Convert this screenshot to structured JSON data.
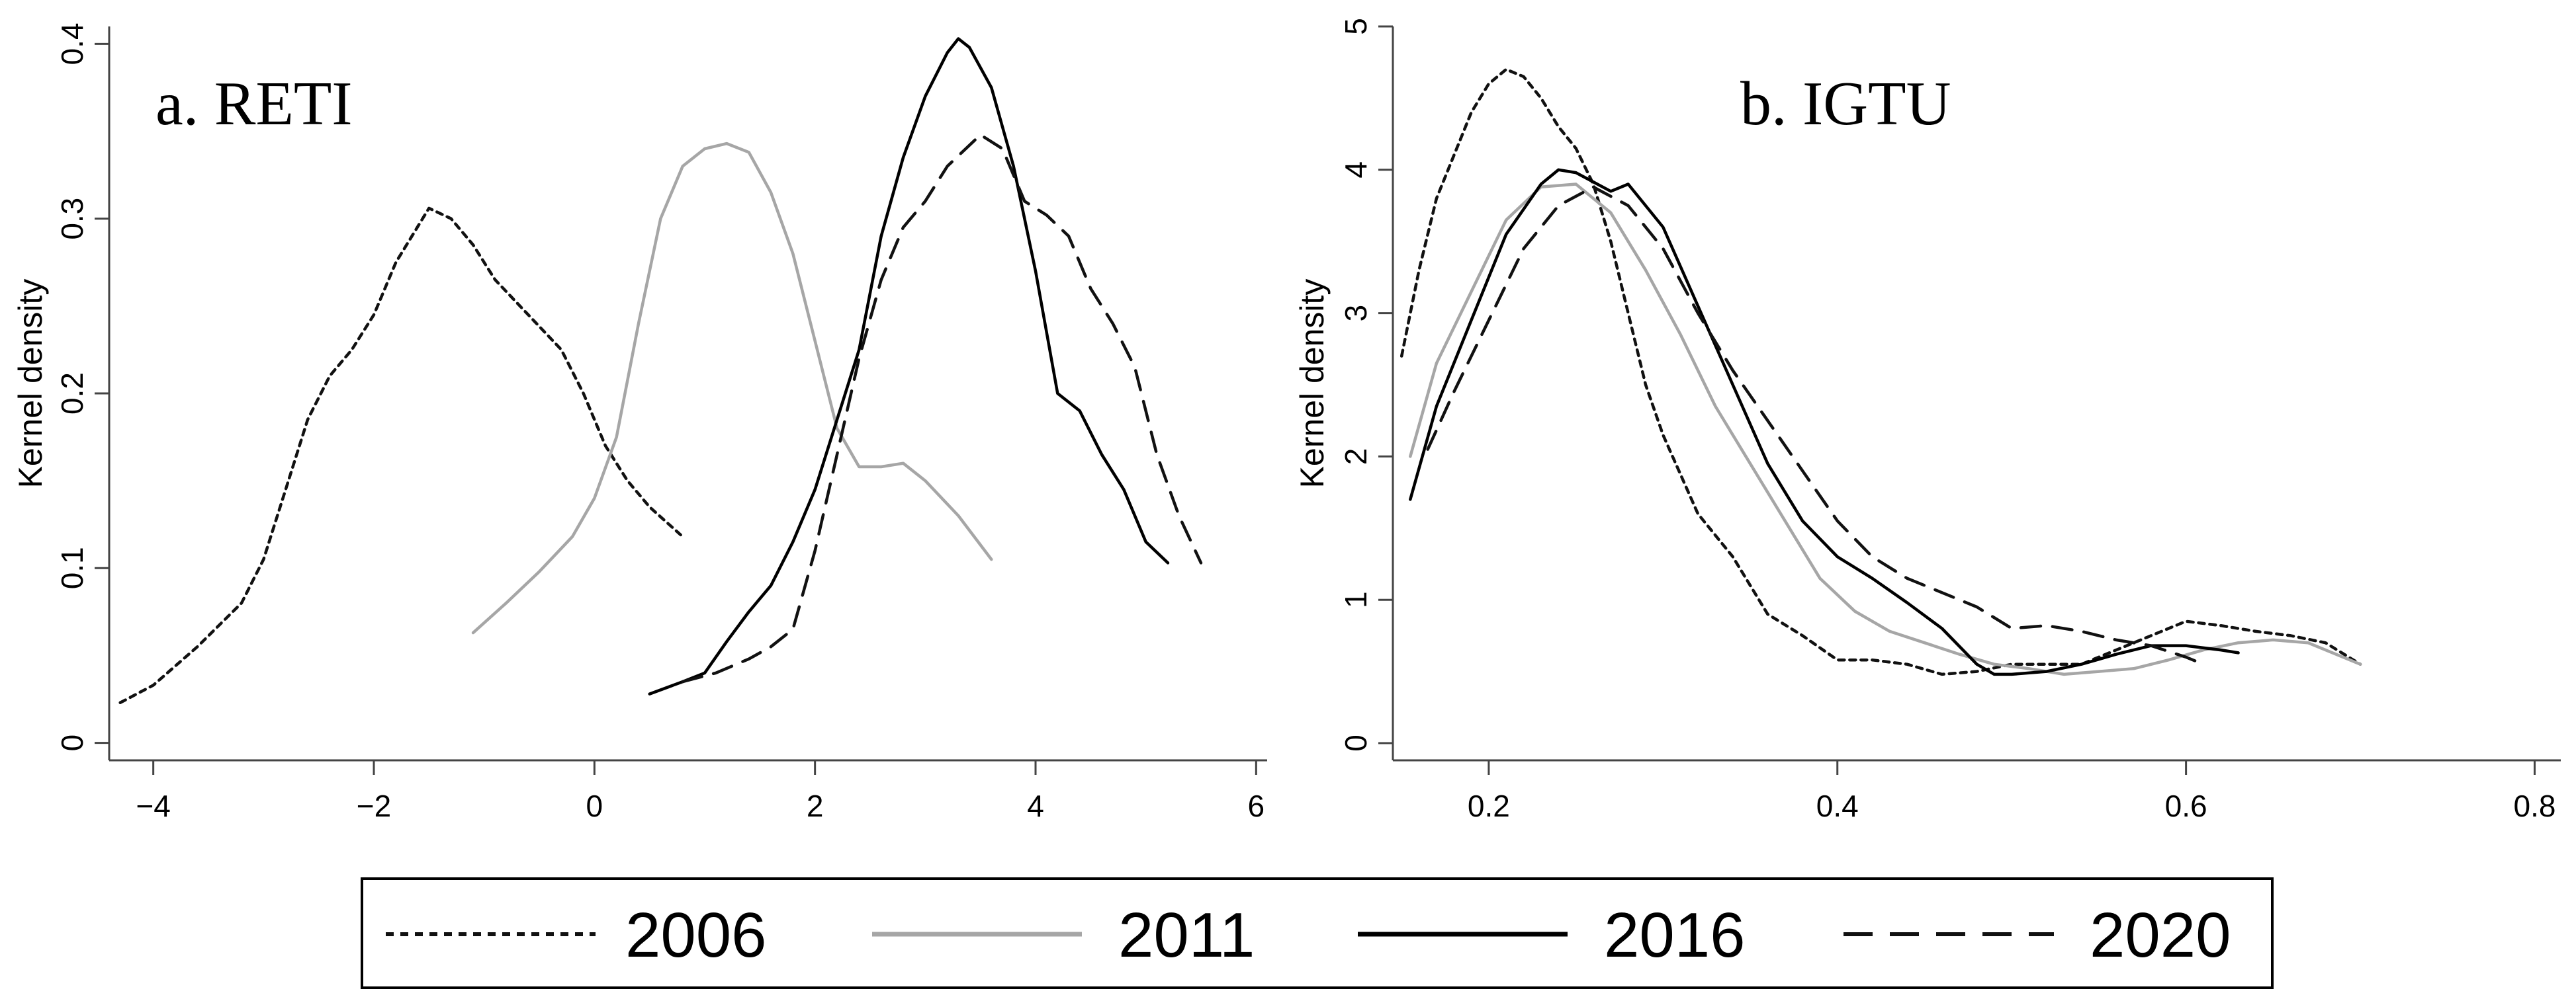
{
  "legend": {
    "entries": [
      "2006",
      "2011",
      "2016",
      "2020"
    ]
  },
  "colors": {
    "s2006": "#111111",
    "s2011": "#a6a6a6",
    "s2016": "#000000",
    "s2020": "#111111",
    "axis": "#444444"
  },
  "chart_data": [
    {
      "type": "line",
      "title": "a. RETI",
      "xlabel": "",
      "ylabel": "Kernel density",
      "xlim": [
        -4.4,
        6.1
      ],
      "ylim": [
        -0.01,
        0.41
      ],
      "xticks": [
        -4,
        -2,
        0,
        2,
        4,
        6
      ],
      "xtick_labels": [
        "−4",
        "−2",
        "0",
        "2",
        "4",
        "6"
      ],
      "yticks": [
        0,
        0.1,
        0.2,
        0.3,
        0.4
      ],
      "ytick_labels": [
        "0",
        "0.1",
        "0.2",
        "0.3",
        "0.4"
      ],
      "grid": false,
      "series": [
        {
          "name": "2006",
          "style": "dotted",
          "x": [
            -4.3,
            -4.0,
            -3.6,
            -3.2,
            -3.0,
            -2.8,
            -2.6,
            -2.4,
            -2.2,
            -2.0,
            -1.8,
            -1.5,
            -1.3,
            -1.1,
            -0.9,
            -0.6,
            -0.3,
            -0.1,
            0.1,
            0.3,
            0.5,
            0.8
          ],
          "y": [
            0.023,
            0.033,
            0.055,
            0.08,
            0.105,
            0.145,
            0.185,
            0.21,
            0.225,
            0.245,
            0.275,
            0.306,
            0.3,
            0.285,
            0.265,
            0.245,
            0.225,
            0.2,
            0.17,
            0.15,
            0.135,
            0.118
          ]
        },
        {
          "name": "2011",
          "style": "solid",
          "x": [
            -1.1,
            -0.8,
            -0.5,
            -0.2,
            0.0,
            0.2,
            0.4,
            0.6,
            0.8,
            1.0,
            1.2,
            1.4,
            1.6,
            1.8,
            2.0,
            2.2,
            2.4,
            2.6,
            2.8,
            3.0,
            3.3,
            3.6
          ],
          "y": [
            0.063,
            0.08,
            0.098,
            0.118,
            0.14,
            0.175,
            0.24,
            0.3,
            0.33,
            0.34,
            0.343,
            0.338,
            0.315,
            0.28,
            0.23,
            0.18,
            0.158,
            0.158,
            0.16,
            0.15,
            0.13,
            0.105
          ]
        },
        {
          "name": "2016",
          "style": "solid",
          "x": [
            0.5,
            0.8,
            1.0,
            1.2,
            1.4,
            1.6,
            1.8,
            2.0,
            2.2,
            2.4,
            2.6,
            2.8,
            3.0,
            3.2,
            3.3,
            3.4,
            3.6,
            3.8,
            4.0,
            4.2,
            4.4,
            4.6,
            4.8,
            5.0,
            5.2
          ],
          "y": [
            0.028,
            0.035,
            0.04,
            0.058,
            0.075,
            0.09,
            0.115,
            0.145,
            0.185,
            0.225,
            0.29,
            0.335,
            0.37,
            0.395,
            0.403,
            0.398,
            0.375,
            0.33,
            0.27,
            0.2,
            0.19,
            0.165,
            0.145,
            0.115,
            0.103
          ]
        },
        {
          "name": "2020",
          "style": "dashed",
          "x": [
            0.8,
            1.1,
            1.4,
            1.6,
            1.8,
            2.0,
            2.2,
            2.4,
            2.6,
            2.8,
            3.0,
            3.2,
            3.5,
            3.7,
            3.9,
            4.1,
            4.3,
            4.5,
            4.7,
            4.9,
            5.1,
            5.3,
            5.5
          ],
          "y": [
            0.035,
            0.04,
            0.048,
            0.055,
            0.065,
            0.11,
            0.165,
            0.22,
            0.265,
            0.295,
            0.31,
            0.33,
            0.348,
            0.34,
            0.31,
            0.302,
            0.29,
            0.26,
            0.24,
            0.215,
            0.165,
            0.13,
            0.103
          ]
        }
      ]
    },
    {
      "type": "line",
      "title": "b. IGTU",
      "xlabel": "",
      "ylabel": "Kernel density",
      "xlim": [
        0.145,
        0.815
      ],
      "ylim": [
        -0.12,
        5.0
      ],
      "xticks": [
        0.2,
        0.4,
        0.6,
        0.8
      ],
      "xtick_labels": [
        "0.2",
        "0.4",
        "0.6",
        "0.8"
      ],
      "yticks": [
        0,
        1,
        2,
        3,
        4,
        5
      ],
      "ytick_labels": [
        "0",
        "1",
        "2",
        "3",
        "4",
        "5"
      ],
      "grid": false,
      "series": [
        {
          "name": "2006",
          "style": "dotted",
          "x": [
            0.15,
            0.16,
            0.17,
            0.18,
            0.19,
            0.2,
            0.21,
            0.22,
            0.23,
            0.24,
            0.25,
            0.26,
            0.27,
            0.28,
            0.29,
            0.3,
            0.32,
            0.34,
            0.36,
            0.38,
            0.4,
            0.42,
            0.44,
            0.46,
            0.48,
            0.5,
            0.52,
            0.54,
            0.56,
            0.58,
            0.6,
            0.62,
            0.64,
            0.66,
            0.68,
            0.7
          ],
          "y": [
            2.7,
            3.3,
            3.8,
            4.1,
            4.4,
            4.6,
            4.7,
            4.65,
            4.5,
            4.3,
            4.15,
            3.9,
            3.5,
            3.0,
            2.5,
            2.15,
            1.6,
            1.3,
            0.9,
            0.75,
            0.58,
            0.58,
            0.55,
            0.48,
            0.5,
            0.55,
            0.55,
            0.55,
            0.65,
            0.75,
            0.85,
            0.82,
            0.78,
            0.75,
            0.7,
            0.55
          ]
        },
        {
          "name": "2011",
          "style": "solid",
          "x": [
            0.155,
            0.17,
            0.19,
            0.21,
            0.23,
            0.25,
            0.27,
            0.29,
            0.31,
            0.33,
            0.35,
            0.37,
            0.39,
            0.41,
            0.43,
            0.45,
            0.47,
            0.49,
            0.51,
            0.53,
            0.55,
            0.57,
            0.59,
            0.61,
            0.63,
            0.65,
            0.67,
            0.7
          ],
          "y": [
            2.0,
            2.65,
            3.15,
            3.65,
            3.88,
            3.9,
            3.7,
            3.3,
            2.85,
            2.35,
            1.95,
            1.55,
            1.15,
            0.92,
            0.78,
            0.7,
            0.62,
            0.55,
            0.52,
            0.48,
            0.5,
            0.52,
            0.58,
            0.65,
            0.7,
            0.72,
            0.7,
            0.55
          ]
        },
        {
          "name": "2016",
          "style": "solid",
          "x": [
            0.155,
            0.17,
            0.19,
            0.21,
            0.23,
            0.24,
            0.25,
            0.27,
            0.28,
            0.3,
            0.32,
            0.34,
            0.36,
            0.38,
            0.4,
            0.42,
            0.44,
            0.46,
            0.48,
            0.49,
            0.5,
            0.52,
            0.54,
            0.56,
            0.58,
            0.6,
            0.62,
            0.63
          ],
          "y": [
            1.7,
            2.35,
            2.95,
            3.55,
            3.9,
            4.0,
            3.98,
            3.85,
            3.9,
            3.6,
            3.05,
            2.5,
            1.95,
            1.55,
            1.3,
            1.15,
            0.98,
            0.8,
            0.55,
            0.48,
            0.48,
            0.5,
            0.55,
            0.62,
            0.68,
            0.68,
            0.65,
            0.63
          ]
        },
        {
          "name": "2020",
          "style": "dashed",
          "x": [
            0.165,
            0.18,
            0.2,
            0.22,
            0.24,
            0.26,
            0.28,
            0.3,
            0.32,
            0.34,
            0.36,
            0.38,
            0.4,
            0.42,
            0.44,
            0.46,
            0.48,
            0.5,
            0.52,
            0.54,
            0.56,
            0.58,
            0.6,
            0.61
          ],
          "y": [
            2.05,
            2.45,
            2.95,
            3.45,
            3.75,
            3.88,
            3.75,
            3.45,
            3.0,
            2.6,
            2.25,
            1.9,
            1.55,
            1.3,
            1.15,
            1.05,
            0.95,
            0.8,
            0.82,
            0.78,
            0.72,
            0.68,
            0.6,
            0.55
          ]
        }
      ]
    }
  ]
}
